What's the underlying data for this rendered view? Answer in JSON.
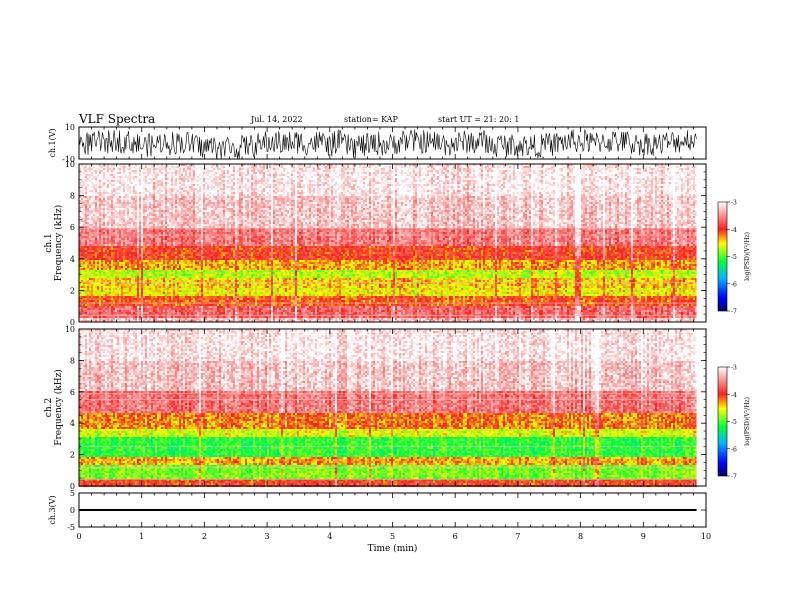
{
  "header": {
    "title": "VLF Spectra",
    "date": "Jul. 14, 2022",
    "station": "station= KAP",
    "start": "start UT =  21: 20: 1"
  },
  "chart_data": [
    {
      "type": "line",
      "panel": "ch1-waveform",
      "ylabel": "ch.1(V)",
      "ylim": [
        -10,
        10
      ],
      "ytick_labels": [
        "10",
        "-10"
      ],
      "x_range_min": [
        0,
        9.85
      ],
      "description_values": "noisy voltage trace fluctuating roughly between -10 and 10 V"
    },
    {
      "type": "heatmap",
      "panel": "ch1-spectrogram",
      "ylabel": "ch.1\nFrequency (kHz)",
      "ylim": [
        0,
        10
      ],
      "ytick_labels": [
        "0",
        "2",
        "4",
        "6",
        "8",
        "10"
      ],
      "colorbar": {
        "label": "log(PSD)(V²/Hz)",
        "range": [
          -7,
          -3
        ],
        "ticks": [
          "-3",
          "-4",
          "-5",
          "-6",
          "-7"
        ]
      },
      "bands": [
        {
          "from": 0.0,
          "to": 0.3,
          "level": -3.3
        },
        {
          "from": 0.3,
          "to": 1.0,
          "level": -3.7
        },
        {
          "from": 1.0,
          "to": 1.6,
          "level": -4.1
        },
        {
          "from": 1.6,
          "to": 2.2,
          "level": -4.5
        },
        {
          "from": 2.2,
          "to": 2.8,
          "level": -4.4
        },
        {
          "from": 2.8,
          "to": 3.3,
          "level": -4.7
        },
        {
          "from": 3.3,
          "to": 3.9,
          "level": -4.3
        },
        {
          "from": 3.9,
          "to": 4.8,
          "level": -4.0
        },
        {
          "from": 4.8,
          "to": 6.0,
          "level": -3.6
        },
        {
          "from": 6.0,
          "to": 8.0,
          "level": -3.25
        },
        {
          "from": 8.0,
          "to": 10.0,
          "level": -3.1
        }
      ]
    },
    {
      "type": "heatmap",
      "panel": "ch2-spectrogram",
      "ylabel": "ch.2\nFrequency (kHz)",
      "ylim": [
        0,
        10
      ],
      "ytick_labels": [
        "0",
        "2",
        "4",
        "6",
        "8",
        "10"
      ],
      "colorbar": {
        "label": "log(PSD)(V²/Hz)",
        "range": [
          -7,
          -3
        ],
        "ticks": [
          "-3",
          "-4",
          "-5",
          "-6",
          "-7"
        ]
      },
      "bands": [
        {
          "from": 0.0,
          "to": 0.4,
          "level": -4.0
        },
        {
          "from": 0.4,
          "to": 1.4,
          "level": -4.85
        },
        {
          "from": 1.4,
          "to": 1.9,
          "level": -4.3
        },
        {
          "from": 1.9,
          "to": 3.1,
          "level": -5.1
        },
        {
          "from": 3.1,
          "to": 3.6,
          "level": -4.6
        },
        {
          "from": 3.6,
          "to": 4.6,
          "level": -4.2
        },
        {
          "from": 4.6,
          "to": 6.0,
          "level": -3.6
        },
        {
          "from": 6.0,
          "to": 8.0,
          "level": -3.25
        },
        {
          "from": 8.0,
          "to": 10.0,
          "level": -3.1
        }
      ]
    },
    {
      "type": "line",
      "panel": "ch3-waveform",
      "ylabel": "ch.3(V)",
      "ylim": [
        -5,
        5
      ],
      "ytick_labels": [
        "5",
        "0",
        "-5"
      ],
      "trace_level": [
        -0.3,
        0.3
      ],
      "xlabel": "Time (min)",
      "xlim": [
        0,
        10
      ],
      "xtick_labels": [
        "0",
        "1",
        "2",
        "3",
        "4",
        "5",
        "6",
        "7",
        "8",
        "9",
        "10"
      ]
    }
  ],
  "colors": {
    "ink": "#000000",
    "grid_tick": "#000000"
  }
}
